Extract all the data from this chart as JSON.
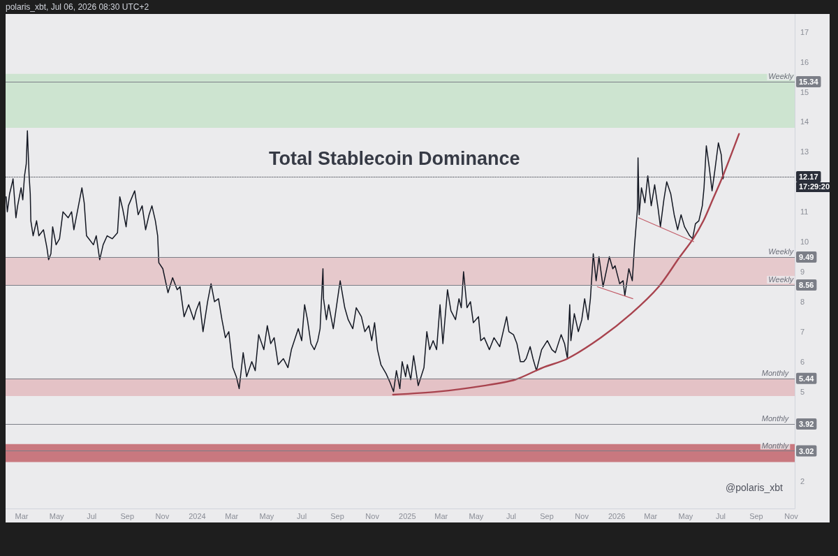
{
  "chart_data": {
    "type": "line",
    "title": "Total Stablecoin Dominance",
    "subtitle": "polaris_xbt, Jul 06, 2026 08:30 UTC+2",
    "annotations": [
      "@polaris_xbt",
      "17:29:20",
      {
        "text": "Weekly",
        "x": "2026-10-14",
        "y": 15.34
      },
      {
        "text": "Weekly",
        "x": "2026-10-14",
        "y": 9.49
      },
      {
        "text": "Weekly",
        "x": "2026-10-14",
        "y": 8.56
      },
      {
        "text": "Monthly",
        "x": "2026-10-04",
        "y": 5.44
      },
      {
        "text": "Monthly",
        "x": "2026-10-04",
        "y": 3.92
      },
      {
        "text": "Monthly",
        "x": "2026-10-04",
        "y": 3.02
      }
    ],
    "series": [
      {
        "color": "#131722",
        "x": [
          "2023-02-02",
          "2023-02-04",
          "2023-02-08",
          "2023-02-13",
          "2023-02-14",
          "2023-02-19",
          "2023-02-22",
          "2023-02-28",
          "2023-03-03",
          "2023-03-06",
          "2023-03-09",
          "2023-03-11",
          "2023-03-14",
          "2023-03-16",
          "2023-03-17",
          "2023-03-21",
          "2023-03-27",
          "2023-03-31",
          "2023-04-08",
          "2023-04-14",
          "2023-04-17",
          "2023-04-21",
          "2023-04-24",
          "2023-04-30",
          "2023-05-06",
          "2023-05-12",
          "2023-05-21",
          "2023-05-27",
          "2023-05-31",
          "2023-06-08",
          "2023-06-14",
          "2023-06-18",
          "2023-06-22",
          "2023-06-26",
          "2023-07-04",
          "2023-07-09",
          "2023-07-15",
          "2023-07-21",
          "2023-07-28",
          "2023-08-06",
          "2023-08-15",
          "2023-08-19",
          "2023-08-24",
          "2023-08-30",
          "2023-09-03",
          "2023-09-14",
          "2023-09-20",
          "2023-09-27",
          "2023-10-03",
          "2023-10-09",
          "2023-10-14",
          "2023-10-20",
          "2023-10-24",
          "2023-10-26",
          "2023-11-02",
          "2023-11-11",
          "2023-11-19",
          "2023-11-27",
          "2023-12-02",
          "2023-12-09",
          "2023-12-17",
          "2023-12-26",
          "2023-12-30",
          "2024-01-05",
          "2024-01-11",
          "2024-01-19",
          "2024-01-25",
          "2024-01-31",
          "2024-02-07",
          "2024-02-13",
          "2024-02-19",
          "2024-02-25",
          "2024-03-03",
          "2024-03-09",
          "2024-03-14",
          "2024-03-21",
          "2024-03-27",
          "2024-04-05",
          "2024-04-11",
          "2024-04-17",
          "2024-04-26",
          "2024-05-02",
          "2024-05-08",
          "2024-05-14",
          "2024-05-21",
          "2024-05-30",
          "2024-06-07",
          "2024-06-13",
          "2024-06-25",
          "2024-07-01",
          "2024-07-06",
          "2024-07-11",
          "2024-07-17",
          "2024-07-23",
          "2024-07-29",
          "2024-08-02",
          "2024-08-07",
          "2024-08-08",
          "2024-08-13",
          "2024-08-17",
          "2024-08-25",
          "2024-08-31",
          "2024-09-06",
          "2024-09-14",
          "2024-09-20",
          "2024-09-28",
          "2024-10-04",
          "2024-10-13",
          "2024-10-19",
          "2024-10-26",
          "2024-10-31",
          "2024-11-05",
          "2024-11-10",
          "2024-11-16",
          "2024-11-25",
          "2024-12-02",
          "2024-12-08",
          "2024-12-13",
          "2024-12-19",
          "2024-12-23",
          "2024-12-29",
          "2025-01-01",
          "2025-01-07",
          "2025-01-12",
          "2025-01-20",
          "2025-01-30",
          "2025-02-04",
          "2025-02-09",
          "2025-02-15",
          "2025-02-21",
          "2025-02-27",
          "2025-03-04",
          "2025-03-12",
          "2025-03-18",
          "2025-03-26",
          "2025-04-01",
          "2025-04-05",
          "2025-04-09",
          "2025-04-15",
          "2025-04-21",
          "2025-04-26",
          "2025-05-05",
          "2025-05-09",
          "2025-05-15",
          "2025-05-24",
          "2025-06-01",
          "2025-06-11",
          "2025-06-17",
          "2025-06-23",
          "2025-06-27",
          "2025-07-05",
          "2025-07-11",
          "2025-07-17",
          "2025-07-23",
          "2025-07-27",
          "2025-08-03",
          "2025-08-08",
          "2025-08-14",
          "2025-08-23",
          "2025-09-02",
          "2025-09-10",
          "2025-09-16",
          "2025-09-26",
          "2025-10-02",
          "2025-10-07",
          "2025-10-11",
          "2025-10-13",
          "2025-10-19",
          "2025-10-26",
          "2025-11-01",
          "2025-11-06",
          "2025-11-12",
          "2025-11-16",
          "2025-11-21",
          "2025-11-26",
          "2025-12-01",
          "2025-12-08",
          "2025-12-19",
          "2025-12-25",
          "2025-12-29",
          "2026-01-06",
          "2026-01-12",
          "2026-01-15",
          "2026-01-22",
          "2026-01-28",
          "2026-02-01",
          "2026-02-06",
          "2026-02-07",
          "2026-02-09",
          "2026-02-13",
          "2026-02-19",
          "2026-02-24",
          "2026-03-02",
          "2026-03-08",
          "2026-03-14",
          "2026-03-18",
          "2026-03-24",
          "2026-03-29",
          "2026-04-05",
          "2026-04-11",
          "2026-04-17",
          "2026-04-23",
          "2026-04-29",
          "2026-05-08",
          "2026-05-13",
          "2026-05-18",
          "2026-05-24",
          "2026-05-30",
          "2026-06-02",
          "2026-06-06",
          "2026-06-11",
          "2026-06-16",
          "2026-06-21",
          "2026-06-27",
          "2026-07-02",
          "2026-07-05",
          "2026-07-06"
        ],
        "values": [
          11.5,
          11.0,
          11.6,
          12.0,
          12.1,
          10.8,
          11.2,
          11.8,
          11.4,
          12.2,
          12.6,
          13.7,
          12.2,
          11.6,
          10.7,
          10.2,
          10.7,
          10.2,
          10.4,
          9.8,
          9.4,
          9.6,
          10.5,
          9.9,
          10.1,
          11.0,
          10.8,
          11.0,
          10.4,
          11.2,
          11.8,
          11.3,
          10.2,
          10.1,
          9.9,
          10.2,
          9.4,
          9.9,
          10.2,
          10.1,
          10.3,
          11.5,
          11.1,
          10.5,
          11.2,
          11.7,
          10.9,
          11.2,
          10.4,
          10.9,
          11.2,
          10.7,
          10.2,
          9.3,
          9.1,
          8.3,
          8.8,
          8.4,
          8.5,
          7.5,
          7.9,
          7.4,
          7.7,
          8.0,
          7.0,
          8.0,
          8.6,
          8.0,
          8.1,
          7.4,
          6.8,
          7.0,
          5.8,
          5.5,
          5.1,
          6.3,
          5.5,
          6.0,
          5.7,
          6.9,
          6.4,
          7.2,
          6.6,
          6.8,
          5.9,
          6.1,
          5.8,
          6.4,
          7.1,
          6.7,
          7.9,
          7.4,
          6.6,
          6.4,
          6.7,
          7.1,
          9.1,
          8.1,
          7.4,
          7.9,
          7.1,
          7.9,
          8.7,
          7.8,
          7.4,
          7.1,
          7.8,
          7.5,
          7.0,
          7.2,
          6.7,
          7.3,
          6.4,
          5.9,
          5.6,
          5.3,
          5.0,
          5.7,
          5.1,
          6.0,
          5.5,
          5.9,
          5.4,
          6.2,
          5.2,
          5.8,
          7.0,
          6.4,
          6.7,
          6.4,
          7.9,
          6.6,
          8.4,
          7.7,
          7.4,
          8.1,
          7.8,
          9.0,
          7.8,
          8.0,
          7.3,
          7.5,
          6.7,
          6.8,
          6.4,
          6.8,
          6.5,
          7.0,
          7.5,
          7.0,
          6.9,
          6.6,
          6.0,
          6.0,
          6.1,
          6.5,
          6.1,
          5.7,
          6.4,
          6.7,
          6.4,
          6.3,
          6.9,
          6.6,
          6.1,
          7.9,
          6.7,
          7.6,
          7.0,
          7.4,
          8.1,
          7.4,
          8.1,
          9.6,
          8.7,
          9.5,
          8.5,
          9.5,
          9.1,
          9.2,
          8.6,
          8.7,
          8.2,
          9.1,
          8.7,
          9.9,
          11.1,
          12.8,
          10.9,
          11.8,
          11.3,
          12.2,
          11.2,
          11.9,
          11.1,
          10.5,
          11.4,
          12.0,
          11.6,
          10.9,
          10.4,
          10.9,
          10.5,
          10.2,
          10.1,
          10.6,
          10.7,
          11.2,
          11.8,
          13.2,
          12.5,
          11.7,
          12.4,
          13.3,
          12.9,
          12.1,
          12.17
        ]
      },
      {
        "color": "#a8434e",
        "x": [
          "2024-12-07",
          "2025-02-24",
          "2025-05-15",
          "2025-07-08",
          "2025-08-25",
          "2025-10-07",
          "2025-12-04",
          "2026-01-26",
          "2026-03-15",
          "2026-04-21",
          "2026-05-14",
          "2026-06-01",
          "2026-06-17",
          "2026-07-05",
          "2026-08-02"
        ],
        "values": [
          4.9,
          5.0,
          5.2,
          5.4,
          5.8,
          6.1,
          6.8,
          7.6,
          8.5,
          9.5,
          10.1,
          10.7,
          11.4,
          12.2,
          13.6
        ]
      },
      {
        "color": "#c25a66",
        "x": [
          "2025-11-28",
          "2026-01-29"
        ],
        "values": [
          8.5,
          8.1
        ]
      },
      {
        "color": "#c25a66",
        "x": [
          "2026-02-08",
          "2026-05-15"
        ],
        "values": [
          10.8,
          10.0
        ]
      }
    ],
    "xlim": [
      "2023-02-01",
      "2026-11-07"
    ],
    "xticks": [
      {
        "value": "2023-03-01",
        "label": "Mar"
      },
      {
        "value": "2023-05-01",
        "label": "May"
      },
      {
        "value": "2023-07-01",
        "label": "Jul"
      },
      {
        "value": "2023-09-01",
        "label": "Sep"
      },
      {
        "value": "2023-11-01",
        "label": "Nov"
      },
      {
        "value": "2024-01-01",
        "label": "2024"
      },
      {
        "value": "2024-03-01",
        "label": "Mar"
      },
      {
        "value": "2024-05-01",
        "label": "May"
      },
      {
        "value": "2024-07-01",
        "label": "Jul"
      },
      {
        "value": "2024-09-01",
        "label": "Sep"
      },
      {
        "value": "2024-11-01",
        "label": "Nov"
      },
      {
        "value": "2025-01-01",
        "label": "2025"
      },
      {
        "value": "2025-03-01",
        "label": "Mar"
      },
      {
        "value": "2025-05-01",
        "label": "May"
      },
      {
        "value": "2025-07-01",
        "label": "Jul"
      },
      {
        "value": "2025-09-01",
        "label": "Sep"
      },
      {
        "value": "2025-11-01",
        "label": "Nov"
      },
      {
        "value": "2026-01-01",
        "label": "2026"
      },
      {
        "value": "2026-03-01",
        "label": "Mar"
      },
      {
        "value": "2026-05-01",
        "label": "May"
      },
      {
        "value": "2026-07-01",
        "label": "Jul"
      },
      {
        "value": "2026-09-01",
        "label": "Sep"
      },
      {
        "value": "2026-11-01",
        "label": "Nov"
      }
    ],
    "ylim": [
      1.1,
      17.6
    ],
    "yticks": [
      2,
      5,
      6,
      7,
      8,
      9,
      10,
      11,
      13,
      14,
      15,
      16,
      17
    ],
    "marker": "none",
    "ref_lines": [
      {
        "axis": "y",
        "value": 15.34,
        "label": "15.34",
        "color": "#7b7e87"
      },
      {
        "axis": "y",
        "value": 12.17,
        "label": "12.17",
        "color": "#2a2e39",
        "line_style": "dotted"
      },
      {
        "axis": "y",
        "value": 9.49,
        "label": "9.49",
        "color": "#7b7e87"
      },
      {
        "axis": "y",
        "value": 8.56,
        "label": "8.56",
        "color": "#7b7e87"
      },
      {
        "axis": "y",
        "value": 5.44,
        "label": "5.44",
        "color": "#7b7e87"
      },
      {
        "axis": "y",
        "value": 3.92,
        "label": "3.92",
        "color": "#7b7e87"
      },
      {
        "axis": "y",
        "value": 3.02,
        "label": "3.02",
        "color": "#7b7e87"
      }
    ],
    "bands": [
      {
        "axis": "y",
        "from": 13.8,
        "to": 15.6,
        "color": "#cde4d0"
      },
      {
        "axis": "y",
        "from": 8.56,
        "to": 9.49,
        "color": "#e6c9cc"
      },
      {
        "axis": "y",
        "from": 4.85,
        "to": 5.44,
        "color": "#e4c2c6"
      },
      {
        "axis": "y",
        "from": 2.65,
        "to": 3.25,
        "color": "#c9787f"
      }
    ]
  }
}
